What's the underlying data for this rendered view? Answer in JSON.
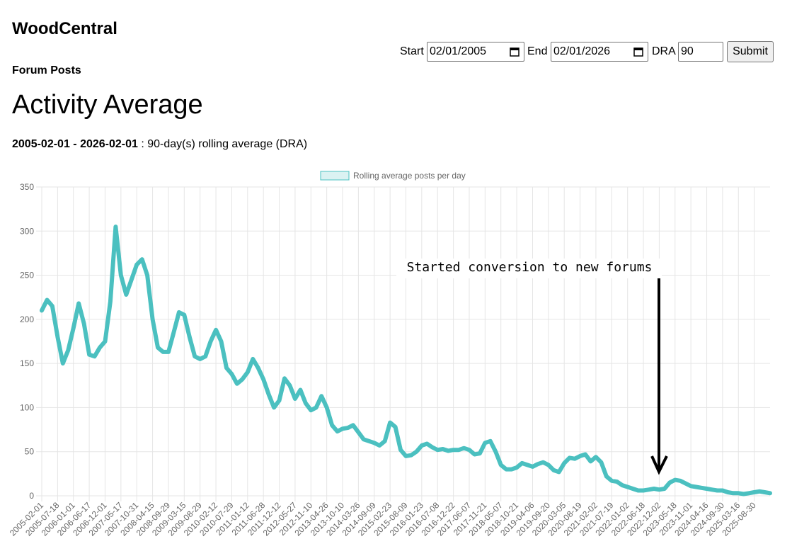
{
  "header": {
    "site_title": "WoodCentral",
    "section": "Forum Posts",
    "page_title": "Activity Average",
    "range": "2005-02-01 - 2026-02-01",
    "range_note": ": 90-day(s) rolling average (DRA)"
  },
  "form": {
    "start_label": "Start",
    "start_value": "02/01/2005",
    "end_label": "End",
    "end_value": "02/01/2026",
    "dra_label": "DRA",
    "dra_value": "90",
    "submit": "Submit"
  },
  "chart_data": {
    "type": "line",
    "annotation": "Started conversion to new forums",
    "legend": "top",
    "grid": true,
    "ylim": [
      0,
      350
    ],
    "yticks": [
      0,
      50,
      100,
      150,
      200,
      250,
      300,
      350
    ],
    "categories": [
      "2005-02-01",
      null,
      null,
      "2005-07-18",
      null,
      null,
      "2006-01-01",
      null,
      null,
      "2006-06-17",
      null,
      null,
      "2006-12-01",
      null,
      null,
      "2007-05-17",
      null,
      null,
      "2007-10-31",
      null,
      null,
      "2008-04-15",
      null,
      null,
      "2008-09-29",
      null,
      null,
      "2009-03-15",
      null,
      null,
      "2009-08-29",
      null,
      null,
      "2010-02-12",
      null,
      null,
      "2010-07-29",
      null,
      null,
      "2011-01-12",
      null,
      null,
      "2011-06-28",
      null,
      null,
      "2011-12-12",
      null,
      null,
      "2012-05-27",
      null,
      null,
      "2012-11-10",
      null,
      null,
      "2013-04-26",
      null,
      null,
      "2013-10-10",
      null,
      null,
      "2014-03-26",
      null,
      null,
      "2014-09-09",
      null,
      null,
      "2015-02-23",
      null,
      null,
      "2015-08-09",
      null,
      null,
      "2016-01-23",
      null,
      null,
      "2016-07-08",
      null,
      null,
      "2016-12-22",
      null,
      null,
      "2017-06-07",
      null,
      null,
      "2017-11-21",
      null,
      null,
      "2018-05-07",
      null,
      null,
      "2018-10-21",
      null,
      null,
      "2019-04-06",
      null,
      null,
      "2019-09-20",
      null,
      null,
      "2020-03-05",
      null,
      null,
      "2020-08-19",
      null,
      null,
      "2021-02-02",
      null,
      null,
      "2021-07-19",
      null,
      null,
      "2022-01-02",
      null,
      null,
      "2022-06-18",
      null,
      null,
      "2022-12-02",
      null,
      null,
      "2023-05-18",
      null,
      null,
      "2023-11-01",
      null,
      null,
      "2024-04-16",
      null,
      null,
      "2024-09-30",
      null,
      null,
      "2025-03-16",
      null,
      null,
      "2025-08-30",
      null,
      null,
      null
    ],
    "series": [
      {
        "name": "Rolling average posts per day",
        "color": "#4bc0c0",
        "values": [
          210,
          222,
          215,
          180,
          150,
          165,
          190,
          218,
          195,
          160,
          158,
          168,
          175,
          220,
          305,
          250,
          228,
          245,
          262,
          268,
          250,
          200,
          168,
          163,
          163,
          185,
          208,
          205,
          180,
          158,
          155,
          158,
          175,
          188,
          175,
          145,
          138,
          127,
          132,
          140,
          155,
          145,
          132,
          115,
          100,
          108,
          133,
          125,
          110,
          120,
          105,
          97,
          100,
          113,
          100,
          80,
          73,
          76,
          77,
          80,
          72,
          64,
          62,
          60,
          57,
          62,
          83,
          78,
          52,
          45,
          46,
          50,
          57,
          59,
          55,
          52,
          53,
          51,
          52,
          52,
          54,
          52,
          47,
          48,
          60,
          62,
          50,
          35,
          30,
          30,
          32,
          37,
          35,
          33,
          36,
          38,
          35,
          29,
          27,
          37,
          43,
          42,
          45,
          47,
          39,
          44,
          38,
          22,
          17,
          16,
          12,
          10,
          8,
          6,
          6,
          7,
          8,
          7,
          8,
          15,
          18,
          17,
          14,
          11,
          10,
          9,
          8,
          7,
          6,
          6,
          4,
          3,
          3,
          2,
          3,
          4,
          5,
          4,
          3
        ]
      }
    ]
  }
}
